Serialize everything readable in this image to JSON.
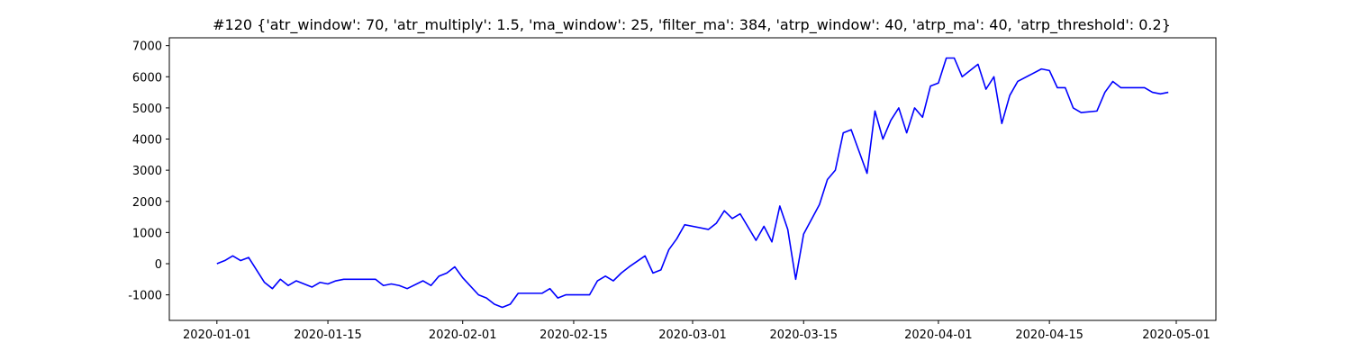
{
  "chart_data": {
    "type": "line",
    "title": "#120 {'atr_window': 70, 'atr_multiply': 1.5, 'ma_window': 25, 'filter_ma': 384, 'atrp_window': 40, 'atrp_ma': 40, 'atrp_threshold': 0.2}",
    "x": [
      "2020-01-01",
      "2020-01-02",
      "2020-01-03",
      "2020-01-04",
      "2020-01-05",
      "2020-01-06",
      "2020-01-07",
      "2020-01-08",
      "2020-01-09",
      "2020-01-10",
      "2020-01-11",
      "2020-01-13",
      "2020-01-14",
      "2020-01-15",
      "2020-01-16",
      "2020-01-17",
      "2020-01-21",
      "2020-01-22",
      "2020-01-23",
      "2020-01-24",
      "2020-01-25",
      "2020-01-27",
      "2020-01-28",
      "2020-01-29",
      "2020-01-30",
      "2020-01-31",
      "2020-02-01",
      "2020-02-03",
      "2020-02-04",
      "2020-02-05",
      "2020-02-06",
      "2020-02-07",
      "2020-02-08",
      "2020-02-11",
      "2020-02-12",
      "2020-02-13",
      "2020-02-14",
      "2020-02-17",
      "2020-02-18",
      "2020-02-19",
      "2020-02-20",
      "2020-02-21",
      "2020-02-22",
      "2020-02-24",
      "2020-02-25",
      "2020-02-26",
      "2020-02-27",
      "2020-02-28",
      "2020-02-29",
      "2020-03-03",
      "2020-03-04",
      "2020-03-05",
      "2020-03-06",
      "2020-03-07",
      "2020-03-09",
      "2020-03-10",
      "2020-03-11",
      "2020-03-12",
      "2020-03-13",
      "2020-03-14",
      "2020-03-15",
      "2020-03-17",
      "2020-03-18",
      "2020-03-19",
      "2020-03-20",
      "2020-03-21",
      "2020-03-23",
      "2020-03-24",
      "2020-03-25",
      "2020-03-26",
      "2020-03-27",
      "2020-03-28",
      "2020-03-29",
      "2020-03-30",
      "2020-03-31",
      "2020-04-01",
      "2020-04-02",
      "2020-04-03",
      "2020-04-04",
      "2020-04-06",
      "2020-04-07",
      "2020-04-08",
      "2020-04-09",
      "2020-04-10",
      "2020-04-11",
      "2020-04-14",
      "2020-04-15",
      "2020-04-16",
      "2020-04-17",
      "2020-04-18",
      "2020-04-19",
      "2020-04-21",
      "2020-04-22",
      "2020-04-23",
      "2020-04-24",
      "2020-04-27",
      "2020-04-28",
      "2020-04-29",
      "2020-04-30"
    ],
    "series": [
      {
        "color": "#0000ff",
        "values": [
          0,
          100,
          250,
          100,
          200,
          -200,
          -600,
          -800,
          -500,
          -700,
          -550,
          -750,
          -600,
          -650,
          -550,
          -500,
          -500,
          -700,
          -650,
          -700,
          -800,
          -550,
          -700,
          -400,
          -300,
          -100,
          -450,
          -1000,
          -1100,
          -1300,
          -1400,
          -1300,
          -950,
          -950,
          -800,
          -1100,
          -1000,
          -1000,
          -550,
          -400,
          -550,
          -300,
          -100,
          250,
          -300,
          -200,
          450,
          800,
          1250,
          1100,
          1300,
          1700,
          1450,
          1600,
          750,
          1200,
          700,
          1850,
          1100,
          -500,
          950,
          1900,
          2700,
          3000,
          4200,
          4300,
          2900,
          4900,
          4000,
          4600,
          5000,
          4200,
          5000,
          4700,
          5700,
          5800,
          6600,
          6600,
          6000,
          6400,
          5600,
          6000,
          4500,
          5400,
          5850,
          6250,
          6200,
          5650,
          5650,
          5000,
          4850,
          4900,
          5500,
          5850,
          5650,
          5650,
          5500,
          5450,
          5500
        ]
      }
    ],
    "xlim": [
      "2019-12-26",
      "2020-05-06"
    ],
    "xticks": [
      "2020-01-01",
      "2020-01-15",
      "2020-02-01",
      "2020-02-15",
      "2020-03-01",
      "2020-03-15",
      "2020-04-01",
      "2020-04-15",
      "2020-05-01"
    ],
    "ylim": [
      -1820,
      7250
    ],
    "yticks": [
      -1000,
      0,
      1000,
      2000,
      3000,
      4000,
      5000,
      6000,
      7000
    ],
    "grid": false
  }
}
